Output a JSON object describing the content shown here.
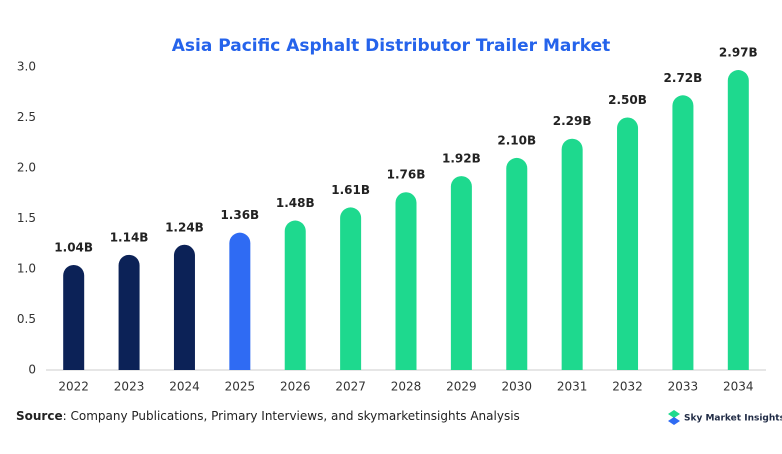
{
  "chart_data": {
    "type": "bar",
    "title": "Asia Pacific Asphalt Distributor Trailer Market",
    "categories": [
      "2022",
      "2023",
      "2024",
      "2025",
      "2026",
      "2027",
      "2028",
      "2029",
      "2030",
      "2031",
      "2032",
      "2033",
      "2034"
    ],
    "values": [
      1.04,
      1.14,
      1.24,
      1.36,
      1.48,
      1.61,
      1.76,
      1.92,
      2.1,
      2.29,
      2.5,
      2.72,
      2.97
    ],
    "value_labels": [
      "1.04B",
      "1.14B",
      "1.24B",
      "1.36B",
      "1.48B",
      "1.61B",
      "1.76B",
      "1.92B",
      "2.10B",
      "2.29B",
      "2.50B",
      "2.72B",
      "2.97B"
    ],
    "colors": [
      "#0c2257",
      "#0c2257",
      "#0c2257",
      "#2f6bf3",
      "#1ed98e",
      "#1ed98e",
      "#1ed98e",
      "#1ed98e",
      "#1ed98e",
      "#1ed98e",
      "#1ed98e",
      "#1ed98e",
      "#1ed98e"
    ],
    "ylim": [
      0,
      3
    ],
    "yticks": [
      0,
      0.5,
      {
        "value": 1,
        "label": "1.0"
      },
      1.5,
      {
        "value": 2,
        "label": "2.0"
      },
      2.5,
      {
        "value": 3,
        "label": "3.0"
      }
    ],
    "grid": false
  },
  "footer": {
    "source_label": "Source",
    "source_text": ": Company Publications, Primary Interviews, and skymarketinsights Analysis",
    "logo": "Sky Market Insights"
  }
}
